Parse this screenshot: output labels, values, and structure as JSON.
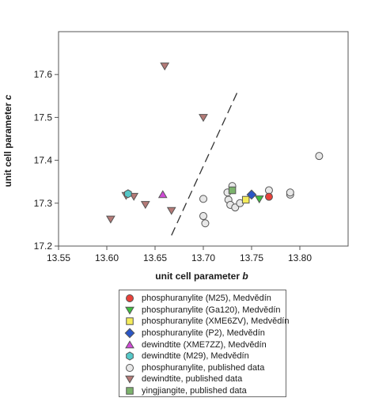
{
  "chart_data": {
    "type": "scatter",
    "xlabel": "unit cell parameter",
    "xlabel_var": "b",
    "ylabel": "unit cell parameter",
    "ylabel_var": "c",
    "xlim": [
      13.55,
      13.85
    ],
    "ylim": [
      17.2,
      17.7
    ],
    "xticks": [
      "13.55",
      "13.60",
      "13.65",
      "13.70",
      "13.75",
      "13.80"
    ],
    "yticks": [
      "17.2",
      "17.3",
      "17.4",
      "17.5",
      "17.6"
    ],
    "xtick_values": [
      13.55,
      13.6,
      13.65,
      13.7,
      13.75,
      13.8
    ],
    "ytick_values": [
      17.2,
      17.3,
      17.4,
      17.5,
      17.6
    ],
    "dashed_line": [
      {
        "x": 13.667,
        "y": 17.225
      },
      {
        "x": 13.7365,
        "y": 17.565
      }
    ],
    "series": [
      {
        "name": "phosphuranylite (M25), Medvědín",
        "marker": "circle",
        "color": "#e8413a",
        "points": [
          {
            "x": 13.768,
            "y": 17.315
          }
        ]
      },
      {
        "name": "phosphuranylite (Ga120), Medvědín",
        "marker": "triangle-down",
        "color": "#3fbf3f",
        "points": [
          {
            "x": 13.758,
            "y": 17.31
          }
        ]
      },
      {
        "name": "phosphuranylite (XME6ZV), Medvědín",
        "marker": "square",
        "color": "#f5ec5a",
        "points": [
          {
            "x": 13.744,
            "y": 17.308
          }
        ]
      },
      {
        "name": "phosphuranylite (P2), Medvědín",
        "marker": "diamond",
        "color": "#2a56c6",
        "points": [
          {
            "x": 13.75,
            "y": 17.32
          }
        ]
      },
      {
        "name": "dewindtite (XME7ZZ), Medvědín",
        "marker": "triangle-up",
        "color": "#d04ad6",
        "points": [
          {
            "x": 13.658,
            "y": 17.32
          }
        ]
      },
      {
        "name": "dewindtite (M29), Medvědín",
        "marker": "hexagon",
        "color": "#55c8c8",
        "points": [
          {
            "x": 13.622,
            "y": 17.322
          }
        ]
      },
      {
        "name": "phosphuranylite, published data",
        "marker": "circle",
        "color": "#e8e8e8",
        "points": [
          {
            "x": 13.82,
            "y": 17.41
          },
          {
            "x": 13.79,
            "y": 17.32
          },
          {
            "x": 13.79,
            "y": 17.325
          },
          {
            "x": 13.768,
            "y": 17.33
          },
          {
            "x": 13.73,
            "y": 17.34
          },
          {
            "x": 13.725,
            "y": 17.325
          },
          {
            "x": 13.726,
            "y": 17.308
          },
          {
            "x": 13.728,
            "y": 17.296
          },
          {
            "x": 13.733,
            "y": 17.29
          },
          {
            "x": 13.738,
            "y": 17.3
          },
          {
            "x": 13.7,
            "y": 17.31
          },
          {
            "x": 13.7,
            "y": 17.27
          },
          {
            "x": 13.702,
            "y": 17.253
          }
        ]
      },
      {
        "name": "dewindtite, published data",
        "marker": "triangle-down",
        "color": "#b57a77",
        "points": [
          {
            "x": 13.66,
            "y": 17.62
          },
          {
            "x": 13.7,
            "y": 17.5
          },
          {
            "x": 13.604,
            "y": 17.263
          },
          {
            "x": 13.62,
            "y": 17.318
          },
          {
            "x": 13.628,
            "y": 17.316
          },
          {
            "x": 13.64,
            "y": 17.297
          },
          {
            "x": 13.667,
            "y": 17.283
          }
        ]
      },
      {
        "name": "yingjiangite, published data",
        "marker": "square",
        "color": "#7cb36c",
        "points": [
          {
            "x": 13.73,
            "y": 17.33
          }
        ]
      }
    ]
  }
}
